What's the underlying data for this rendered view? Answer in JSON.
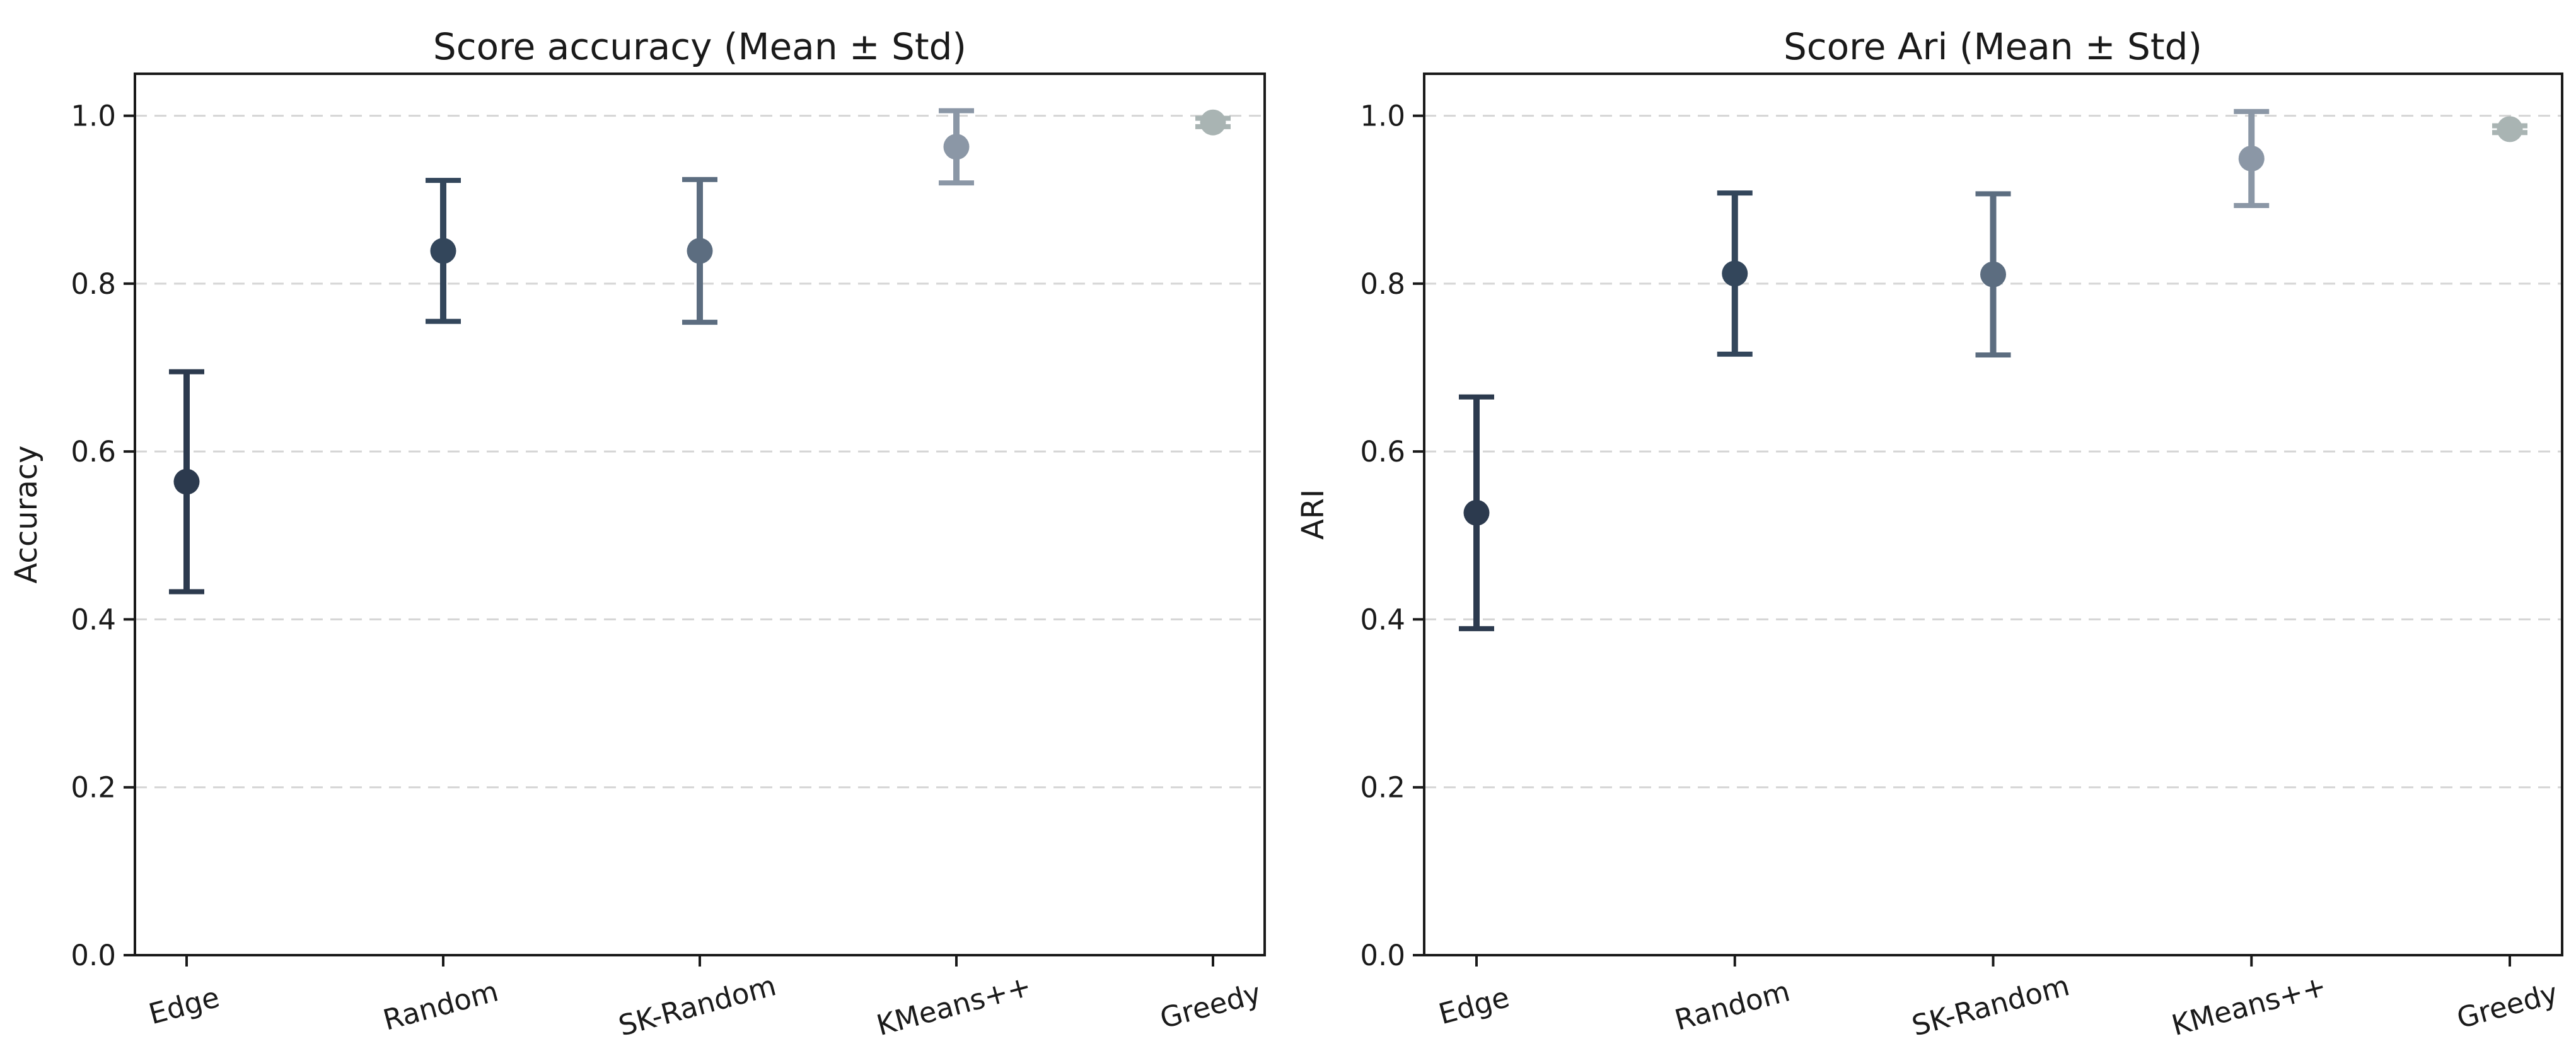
{
  "figure": {
    "background": "#ffffff",
    "description": "Two error-bar scatter charts comparing initialization methods"
  },
  "style": {
    "axis_color": "#1a1a1a",
    "text_color": "#1a1a1a",
    "grid_color": "#d5d5d5",
    "background": "#ffffff"
  },
  "chart_data": [
    {
      "type": "scatter",
      "title": "Score accuracy (Mean ± Std)",
      "xlabel": "",
      "ylabel": "Accuracy",
      "categories": [
        "Edge",
        "Random",
        "SK-Random",
        "KMeans++",
        "Greedy"
      ],
      "means": [
        0.564,
        0.839,
        0.839,
        0.963,
        0.992
      ],
      "stds": [
        0.131,
        0.084,
        0.085,
        0.043,
        0.005
      ],
      "point_colors": [
        "#2c3a4e",
        "#33465b",
        "#5c6d80",
        "#8b97a6",
        "#a9b4b3"
      ],
      "ylim": [
        0.0,
        1.05
      ],
      "yticks": [
        0.0,
        0.2,
        0.4,
        0.6,
        0.8,
        1.0
      ],
      "ytick_labels": [
        "0.0",
        "0.2",
        "0.4",
        "0.6",
        "0.8",
        "1.0"
      ],
      "grid": "horizontal-dashed",
      "legend": "none",
      "xtick_rotation_deg": 15
    },
    {
      "type": "scatter",
      "title": "Score Ari (Mean ± Std)",
      "xlabel": "",
      "ylabel": "ARI",
      "categories": [
        "Edge",
        "Random",
        "SK-Random",
        "KMeans++",
        "Greedy"
      ],
      "means": [
        0.527,
        0.812,
        0.811,
        0.949,
        0.984
      ],
      "stds": [
        0.138,
        0.096,
        0.096,
        0.056,
        0.004
      ],
      "point_colors": [
        "#2c3a4e",
        "#33465b",
        "#5c6d80",
        "#8b97a6",
        "#a9b4b3"
      ],
      "ylim": [
        0.0,
        1.05
      ],
      "yticks": [
        0.0,
        0.2,
        0.4,
        0.6,
        0.8,
        1.0
      ],
      "ytick_labels": [
        "0.0",
        "0.2",
        "0.4",
        "0.6",
        "0.8",
        "1.0"
      ],
      "grid": "horizontal-dashed",
      "legend": "none",
      "xtick_rotation_deg": 15
    }
  ]
}
